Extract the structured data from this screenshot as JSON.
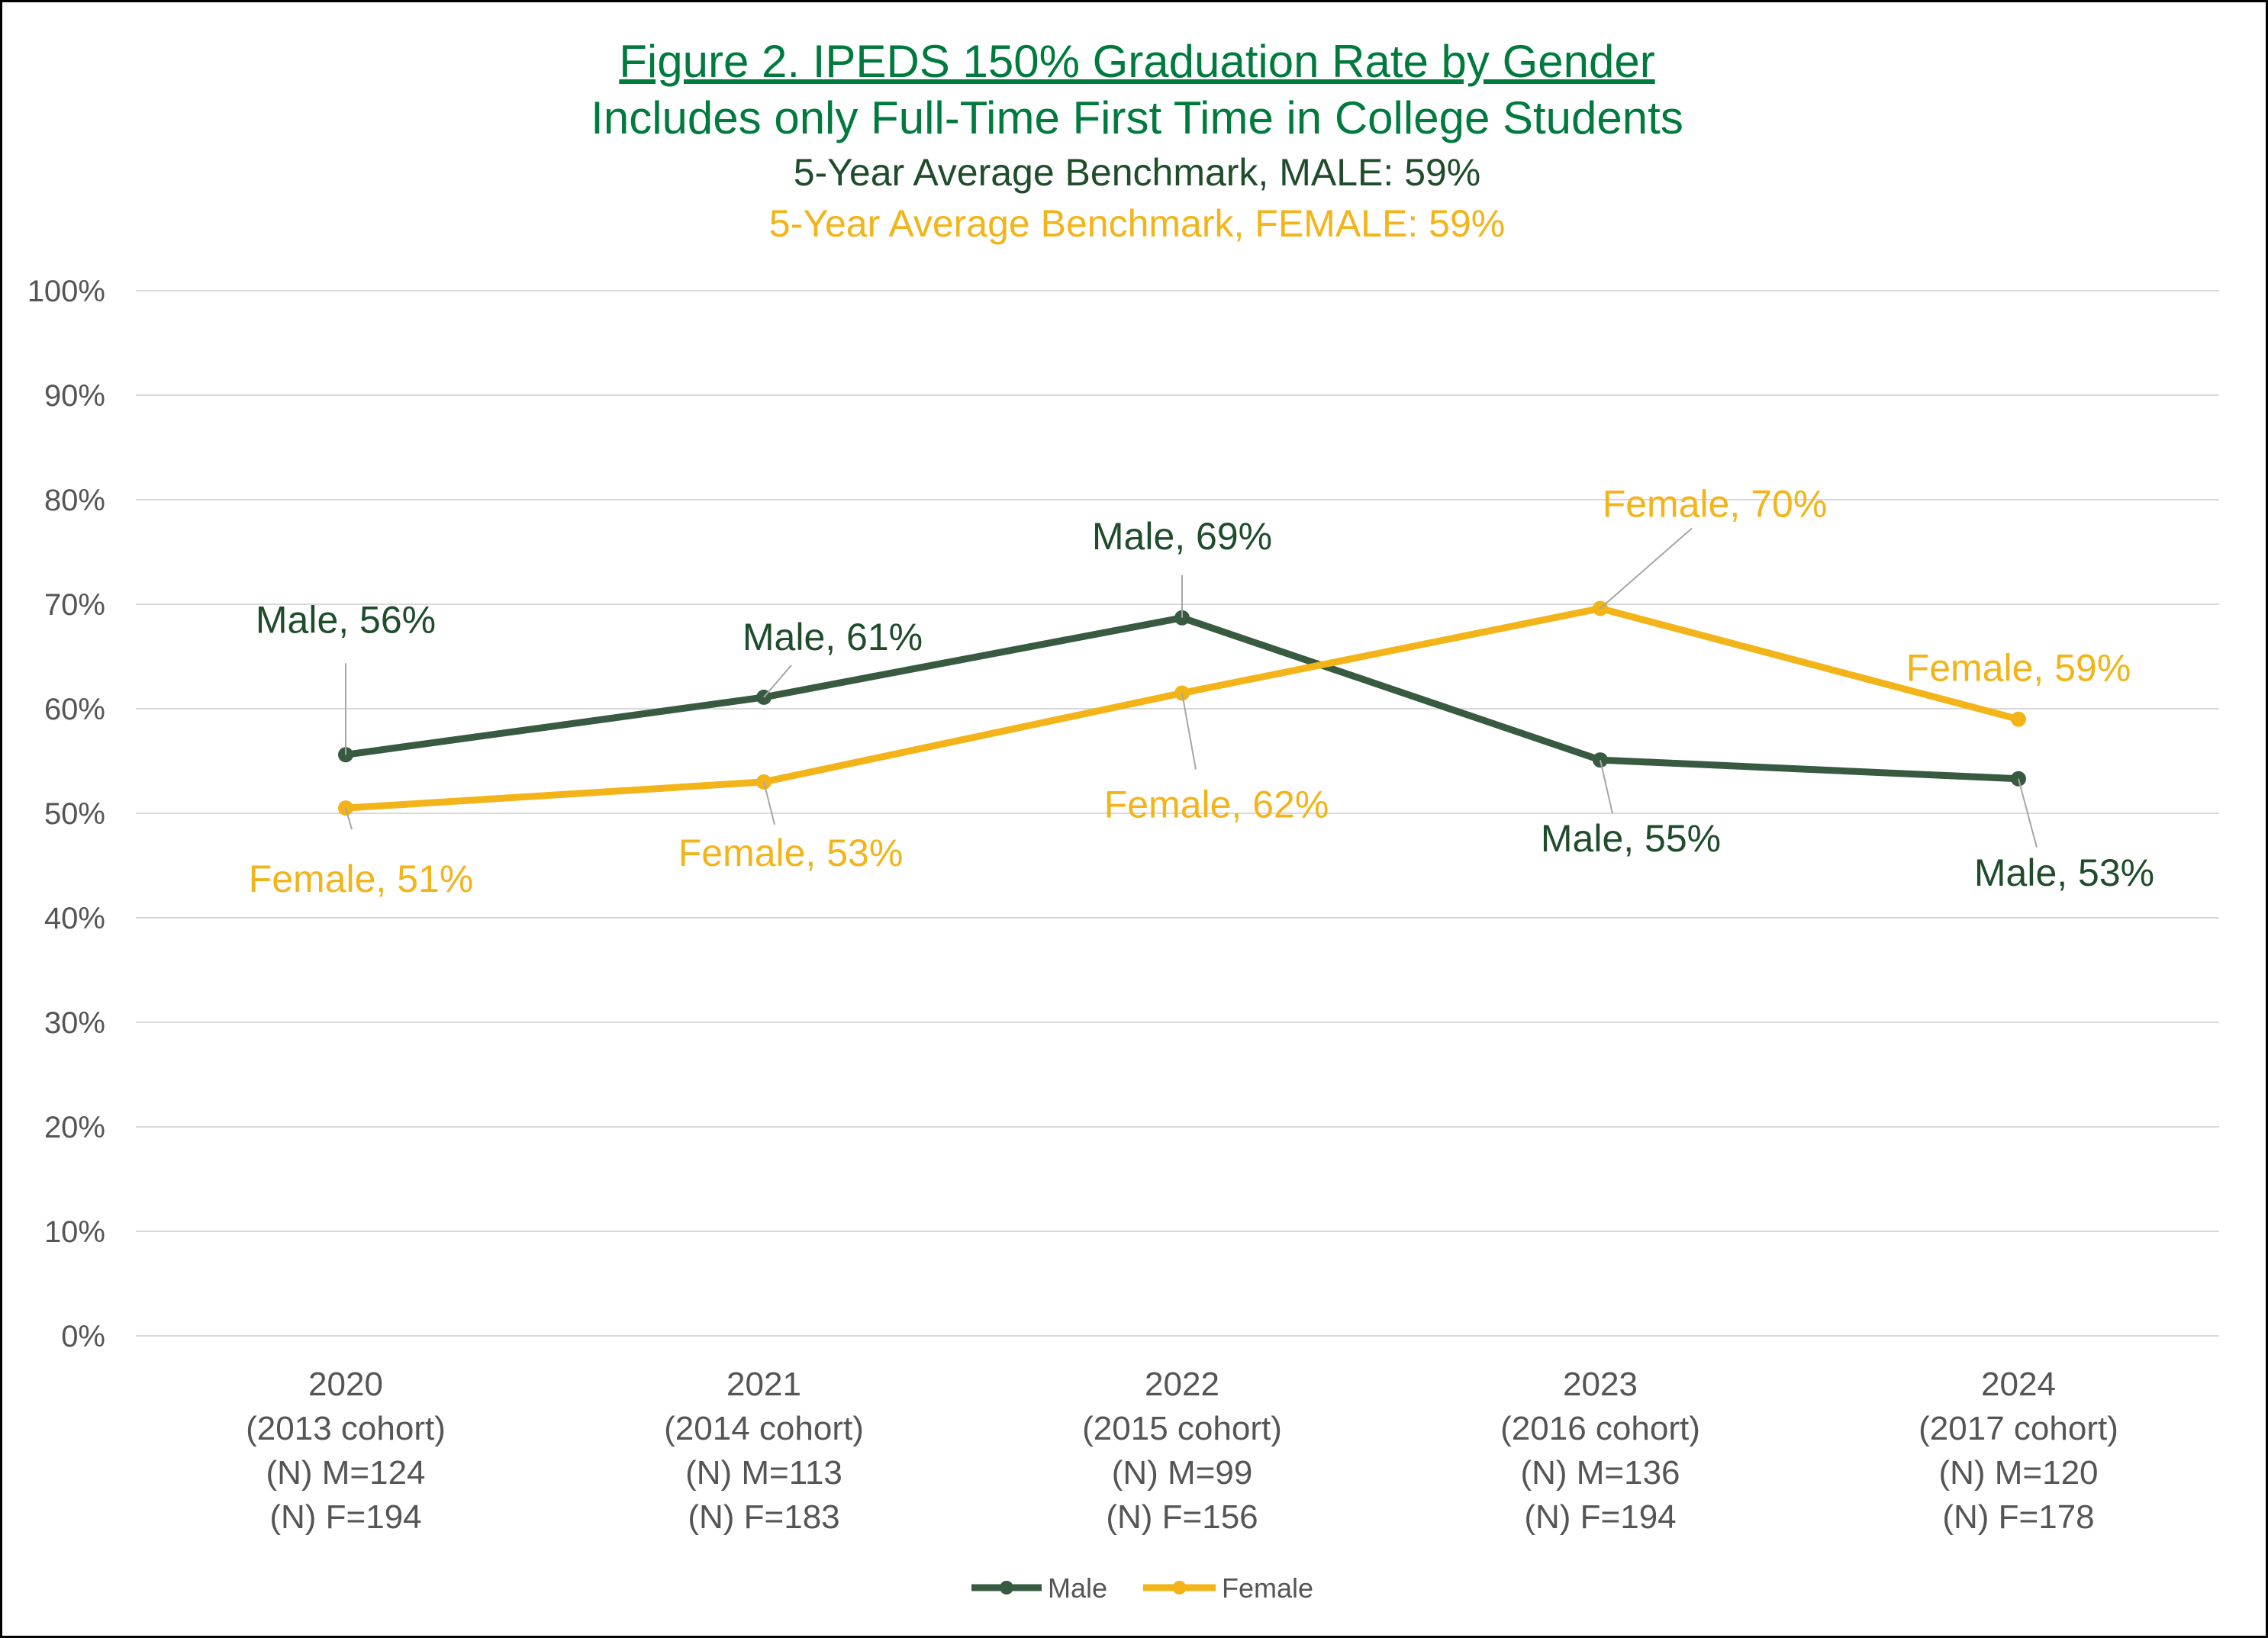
{
  "chart_data": {
    "type": "line",
    "title": "Figure 2. IPEDS 150% Graduation Rate by Gender",
    "subtitle": "Includes only Full-Time First Time in College Students",
    "benchmarks": [
      {
        "label": "5-Year Average Benchmark, MALE:",
        "value": "59%",
        "color": "#1f4c2b"
      },
      {
        "label": "5-Year Average Benchmark, FEMALE:",
        "value": "59%",
        "color": "#f2b418"
      }
    ],
    "ylim": [
      0,
      100
    ],
    "yticks": [
      0,
      10,
      20,
      30,
      40,
      50,
      60,
      70,
      80,
      90,
      100
    ],
    "ytick_labels": [
      "0%",
      "10%",
      "20%",
      "30%",
      "40%",
      "50%",
      "60%",
      "70%",
      "80%",
      "90%",
      "100%"
    ],
    "categories": [
      [
        "2020",
        "(2013 cohort)",
        "(N) M=124",
        "(N) F=194"
      ],
      [
        "2021",
        "(2014 cohort)",
        "(N) M=113",
        "(N) F=183"
      ],
      [
        "2022",
        "(2015 cohort)",
        "(N) M=99",
        "(N) F=156"
      ],
      [
        "2023",
        "(2016 cohort)",
        "(N) M=136",
        "(N) F=194"
      ],
      [
        "2024",
        "(2017 cohort)",
        "(N) M=120",
        "(N) F=178"
      ]
    ],
    "series": [
      {
        "name": "Male",
        "color": "#385a41",
        "label_color": "#1f4c2b",
        "values": [
          55.6,
          61.1,
          68.7,
          55.1,
          53.3
        ],
        "labels": [
          "Male, 56%",
          "Male, 61%",
          "Male, 69%",
          "Male, 55%",
          "Male, 53%"
        ]
      },
      {
        "name": "Female",
        "color": "#f2b418",
        "label_color": "#f2b418",
        "values": [
          50.5,
          53.0,
          61.5,
          69.6,
          59.0
        ],
        "labels": [
          "Female, 51%",
          "Female, 53%",
          "Female, 62%",
          "Female, 70%",
          "Female, 59%"
        ]
      }
    ],
    "legend": [
      "Male",
      "Female"
    ],
    "legend_position": "bottom",
    "grid": true
  }
}
